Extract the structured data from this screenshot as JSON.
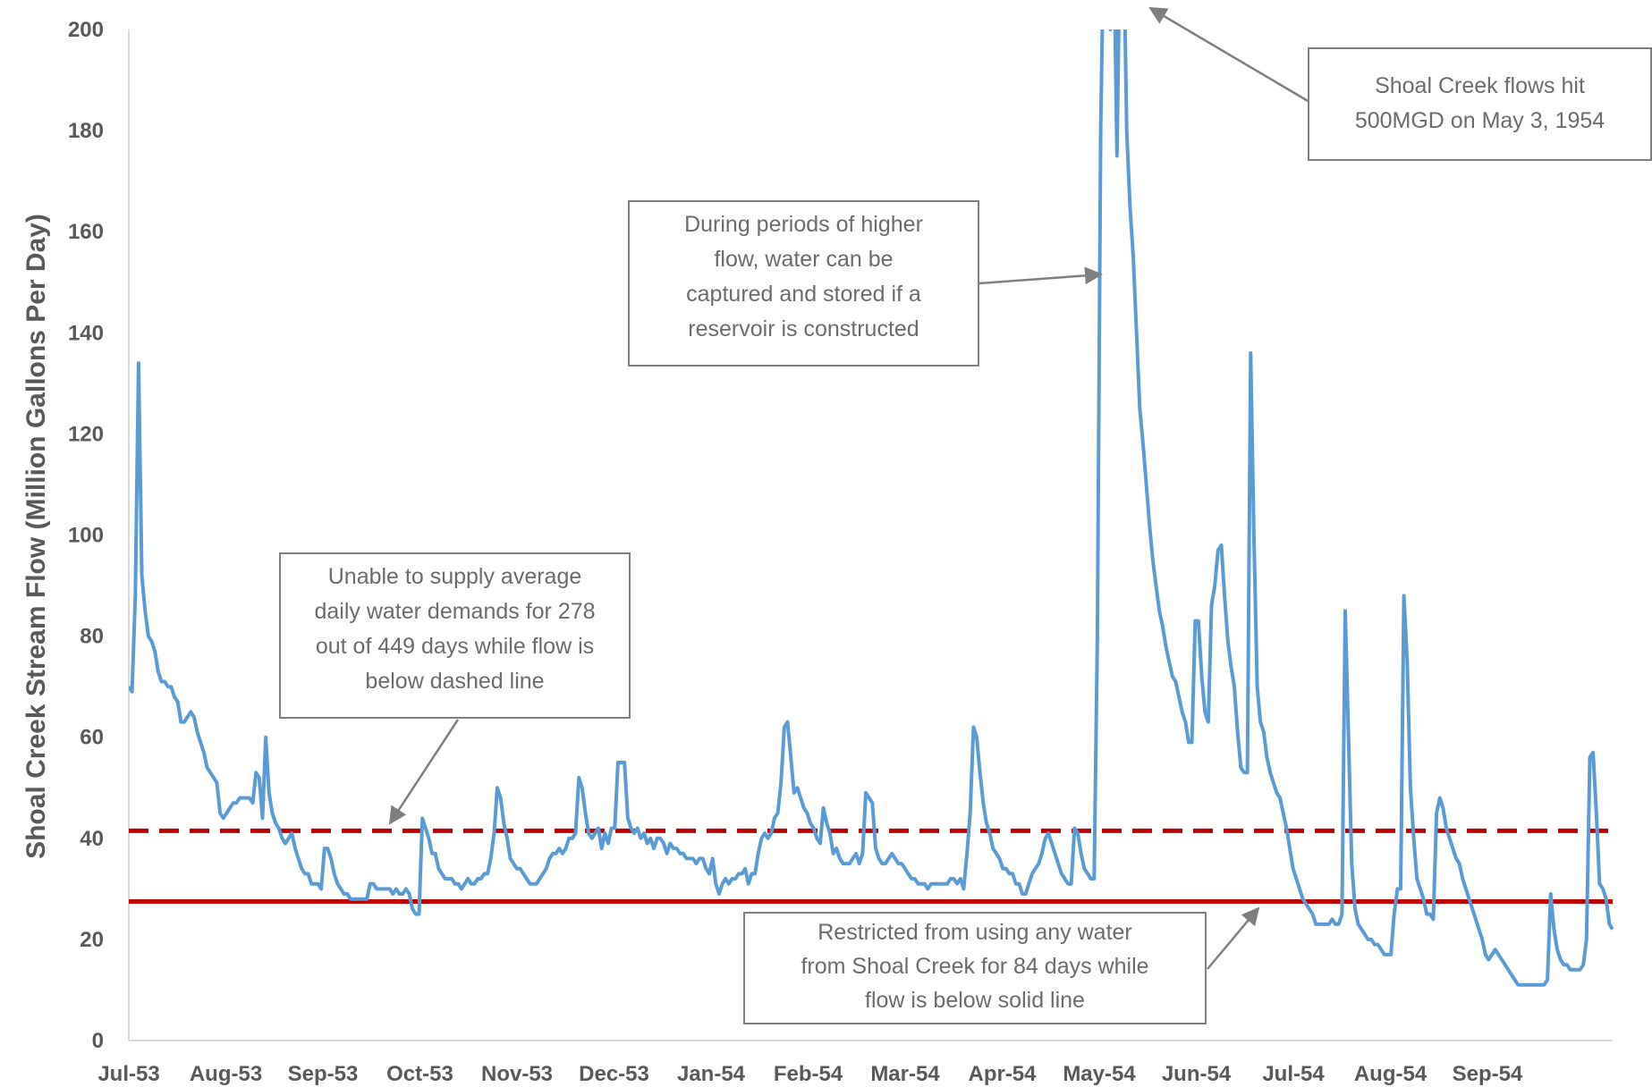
{
  "chart_data": {
    "type": "line",
    "title": "",
    "xlabel": "",
    "ylabel": "Shoal Creek Stream Flow (Million Gallons Per Day)",
    "ylim": [
      0,
      200
    ],
    "yticks": [
      0,
      20,
      40,
      60,
      80,
      100,
      120,
      140,
      160,
      180,
      200
    ],
    "xticks": [
      "Jul-53",
      "Aug-53",
      "Sep-53",
      "Oct-53",
      "Nov-53",
      "Dec-53",
      "Jan-54",
      "Feb-54",
      "Mar-54",
      "Apr-54",
      "May-54",
      "Jun-54",
      "Jul-54",
      "Aug-54",
      "Sep-54"
    ],
    "grid": false,
    "legend": "none",
    "colors": {
      "flow": "#5b9bd5",
      "thresholds": "#c00000",
      "annotation_border": "#7f7f7f",
      "text": "#595959"
    },
    "series": [
      {
        "values": [
          70,
          69,
          88,
          134,
          92,
          85,
          80,
          79,
          77,
          73,
          71,
          71,
          70,
          70,
          68,
          67,
          63,
          63,
          64,
          65,
          64,
          61,
          59,
          57,
          54,
          53,
          52,
          51,
          45,
          44,
          45,
          46,
          47,
          47,
          48,
          48,
          48,
          48,
          47,
          53,
          52,
          44,
          60,
          49,
          45,
          43,
          42,
          40,
          39,
          40,
          41,
          38,
          36,
          34,
          33,
          33,
          31,
          31,
          31,
          30,
          38,
          38,
          36,
          33,
          31,
          30,
          29,
          29,
          28,
          28,
          28,
          28,
          28,
          28,
          31,
          31,
          30,
          30,
          30,
          30,
          30,
          29,
          30,
          29,
          29,
          30,
          29,
          26,
          25,
          25,
          44,
          42,
          40,
          37,
          37,
          34,
          33,
          32,
          32,
          32,
          31,
          31,
          30,
          31,
          32,
          31,
          31,
          32,
          32,
          33,
          33,
          36,
          41,
          50,
          48,
          43,
          40,
          36,
          35,
          34,
          34,
          33,
          32,
          31,
          31,
          31,
          32,
          33,
          34,
          36,
          37,
          37,
          38,
          37,
          38,
          40,
          40,
          41,
          52,
          50,
          45,
          41,
          40,
          41,
          42,
          38,
          41,
          39,
          42,
          42,
          55,
          55,
          55,
          44,
          42,
          41,
          42,
          40,
          41,
          39,
          40,
          38,
          40,
          40,
          39,
          37,
          39,
          38,
          38,
          37,
          37,
          36,
          36,
          36,
          35,
          36,
          36,
          34,
          33,
          36,
          31,
          29,
          31,
          32,
          31,
          32,
          32,
          33,
          33,
          34,
          31,
          33,
          33,
          37,
          40,
          41,
          40,
          41,
          44,
          45,
          51,
          62,
          63,
          56,
          49,
          50,
          48,
          46,
          45,
          43,
          42,
          40,
          39,
          46,
          43,
          41,
          37,
          38,
          36,
          35,
          35,
          35,
          36,
          37,
          35,
          37,
          49,
          48,
          47,
          38,
          36,
          35,
          35,
          36,
          37,
          36,
          35,
          35,
          34,
          33,
          32,
          32,
          31,
          31,
          31,
          30,
          31,
          31,
          31,
          31,
          31,
          31,
          32,
          32,
          31,
          32,
          30,
          37,
          45,
          62,
          60,
          53,
          47,
          43,
          41,
          38,
          37,
          36,
          34,
          34,
          33,
          33,
          31,
          31,
          29,
          29,
          31,
          33,
          34,
          35,
          37,
          40,
          41,
          39,
          37,
          35,
          33,
          32,
          31,
          31,
          42,
          41,
          37,
          34,
          33,
          32,
          32,
          80,
          180,
          220,
          220,
          200,
          220,
          175,
          220,
          220,
          180,
          165,
          155,
          140,
          125,
          118,
          110,
          102,
          95,
          90,
          85,
          82,
          78,
          75,
          72,
          71,
          68,
          65,
          63,
          59,
          59,
          83,
          83,
          72,
          65,
          63,
          86,
          90,
          97,
          98,
          88,
          79,
          74,
          70,
          61,
          54,
          53,
          53,
          136,
          100,
          70,
          63,
          61,
          56,
          53,
          51,
          49,
          48,
          45,
          42,
          38,
          34,
          32,
          30,
          28,
          27,
          26,
          25,
          23,
          23,
          23,
          23,
          23,
          24,
          23,
          23,
          25,
          85,
          60,
          35,
          26,
          23,
          22,
          21,
          20,
          20,
          19,
          19,
          18,
          17,
          17,
          17,
          25,
          30,
          30,
          88,
          75,
          50,
          40,
          32,
          30,
          28,
          25,
          25,
          24,
          45,
          48,
          46,
          42,
          40,
          38,
          36,
          35,
          32,
          30,
          28,
          26,
          24,
          22,
          20,
          17,
          16,
          17,
          18,
          17,
          16,
          15,
          14,
          13,
          12,
          11,
          11,
          11,
          11,
          11,
          11,
          11,
          11,
          11,
          12,
          29,
          22,
          18,
          16,
          15,
          15,
          14,
          14,
          14,
          14,
          15,
          20,
          56,
          57,
          45,
          31,
          30,
          28,
          23,
          22
        ]
      }
    ],
    "reference_lines": [
      {
        "style": "dashed",
        "value": 41.5
      },
      {
        "style": "solid",
        "value": 27.5
      }
    ],
    "annotations": [
      {
        "id": "reservoir",
        "lines": [
          "During periods of higher",
          "flow, water can be",
          "captured and stored if a",
          "reservoir is constructed"
        ]
      },
      {
        "id": "peak",
        "lines": [
          "Shoal Creek flows hit",
          "500MGD on May 3, 1954"
        ]
      },
      {
        "id": "average",
        "lines": [
          "Unable to supply average",
          "daily water demands for 278",
          "out of 449 days while flow is",
          "below dashed line"
        ]
      },
      {
        "id": "restricted",
        "lines": [
          "Restricted from using any water",
          "from Shoal Creek for 84 days while",
          "flow is below solid line"
        ]
      }
    ]
  }
}
